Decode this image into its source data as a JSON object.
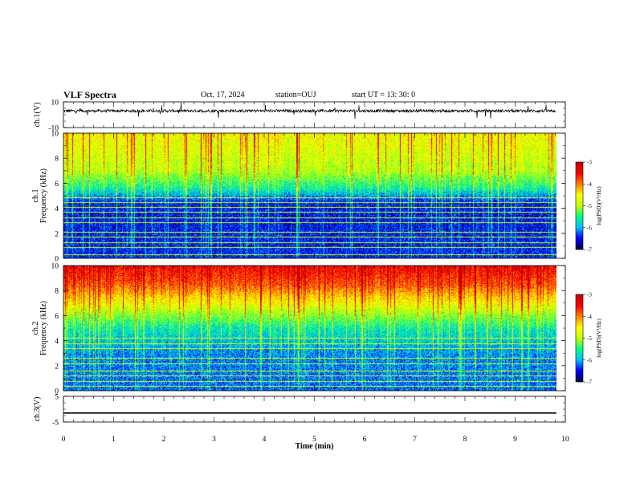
{
  "header": {
    "title": "VLF Spectra",
    "date": "Oct. 17, 2024",
    "station": "station=OUJ",
    "start": "start  UT =   13: 30: 0"
  },
  "chart_data": [
    {
      "type": "line",
      "name": "ch1-waveform",
      "ylabel": "ch.1(V)",
      "ylim": [
        -10,
        10
      ],
      "ytick_labels": [
        "-10",
        "10"
      ],
      "x_range_min": [
        0,
        9.82
      ],
      "baseline_v": 3.0,
      "color": "#000000"
    },
    {
      "type": "heatmap",
      "name": "ch1-spectrogram",
      "ylabel": "ch.1",
      "ylabel2": "Frequency (kHz)",
      "ylim": [
        0,
        10
      ],
      "ytick_labels": [
        "0",
        "2",
        "4",
        "6",
        "8",
        "10"
      ],
      "x_range_min": [
        0,
        9.82
      ],
      "colorbar": {
        "label": "log(PSD)(V²/Hz)",
        "range": [
          -7,
          -3
        ],
        "ticks": [
          "-3",
          "-4",
          "-5",
          "-6",
          "-7"
        ]
      },
      "mean_profile_log_psd": [
        {
          "f": 0.0,
          "v": -6.5
        },
        {
          "f": 3.0,
          "v": -6.6
        },
        {
          "f": 4.5,
          "v": -6.6
        },
        {
          "f": 5.5,
          "v": -5.8
        },
        {
          "f": 7.0,
          "v": -5.1
        },
        {
          "f": 10.0,
          "v": -4.8
        }
      ],
      "line_freqs_khz": [
        0.3,
        0.9,
        1.3,
        1.7,
        2.1,
        2.9,
        3.3,
        3.7,
        4.1,
        4.5,
        4.9
      ]
    },
    {
      "type": "heatmap",
      "name": "ch2-spectrogram",
      "ylabel": "ch.2",
      "ylabel2": "Frequency (kHz)",
      "ylim": [
        0,
        10
      ],
      "ytick_labels": [
        "0",
        "2",
        "4",
        "6",
        "8",
        "10"
      ],
      "x_range_min": [
        0,
        9.82
      ],
      "colorbar": {
        "label": "log(PSD)(V²/Hz)",
        "range": [
          -7,
          -3
        ],
        "ticks": [
          "-3",
          "-4",
          "-5",
          "-6",
          "-7"
        ]
      },
      "mean_profile_log_psd": [
        {
          "f": 0.0,
          "v": -6.3
        },
        {
          "f": 3.0,
          "v": -6.2
        },
        {
          "f": 5.0,
          "v": -5.8
        },
        {
          "f": 7.0,
          "v": -4.8
        },
        {
          "f": 8.5,
          "v": -4.0
        },
        {
          "f": 10.0,
          "v": -3.6
        }
      ],
      "line_freqs_khz": [
        0.4,
        0.8,
        1.2,
        1.6,
        2.2,
        2.6,
        3.4,
        3.8,
        4.2
      ]
    },
    {
      "type": "line",
      "name": "ch3-waveform",
      "ylabel": "ch.3(V)",
      "ylim": [
        -5,
        5
      ],
      "ytick_labels": [
        "-5",
        "5"
      ],
      "x_range_min": [
        0,
        9.82
      ],
      "constant_v": -1.5,
      "color": "#000000"
    }
  ],
  "xaxis": {
    "label": "Time (min)",
    "range": [
      0,
      10
    ],
    "tick_labels": [
      "0",
      "1",
      "2",
      "3",
      "4",
      "5",
      "6",
      "7",
      "8",
      "9",
      "10"
    ]
  },
  "colors": {
    "cmap": [
      "#00004a",
      "#0000ff",
      "#00c0ff",
      "#00ff80",
      "#c8ff00",
      "#ffff00",
      "#ff8000",
      "#ff0000",
      "#c00000"
    ],
    "axis": "#000000",
    "background": "#ffffff"
  }
}
